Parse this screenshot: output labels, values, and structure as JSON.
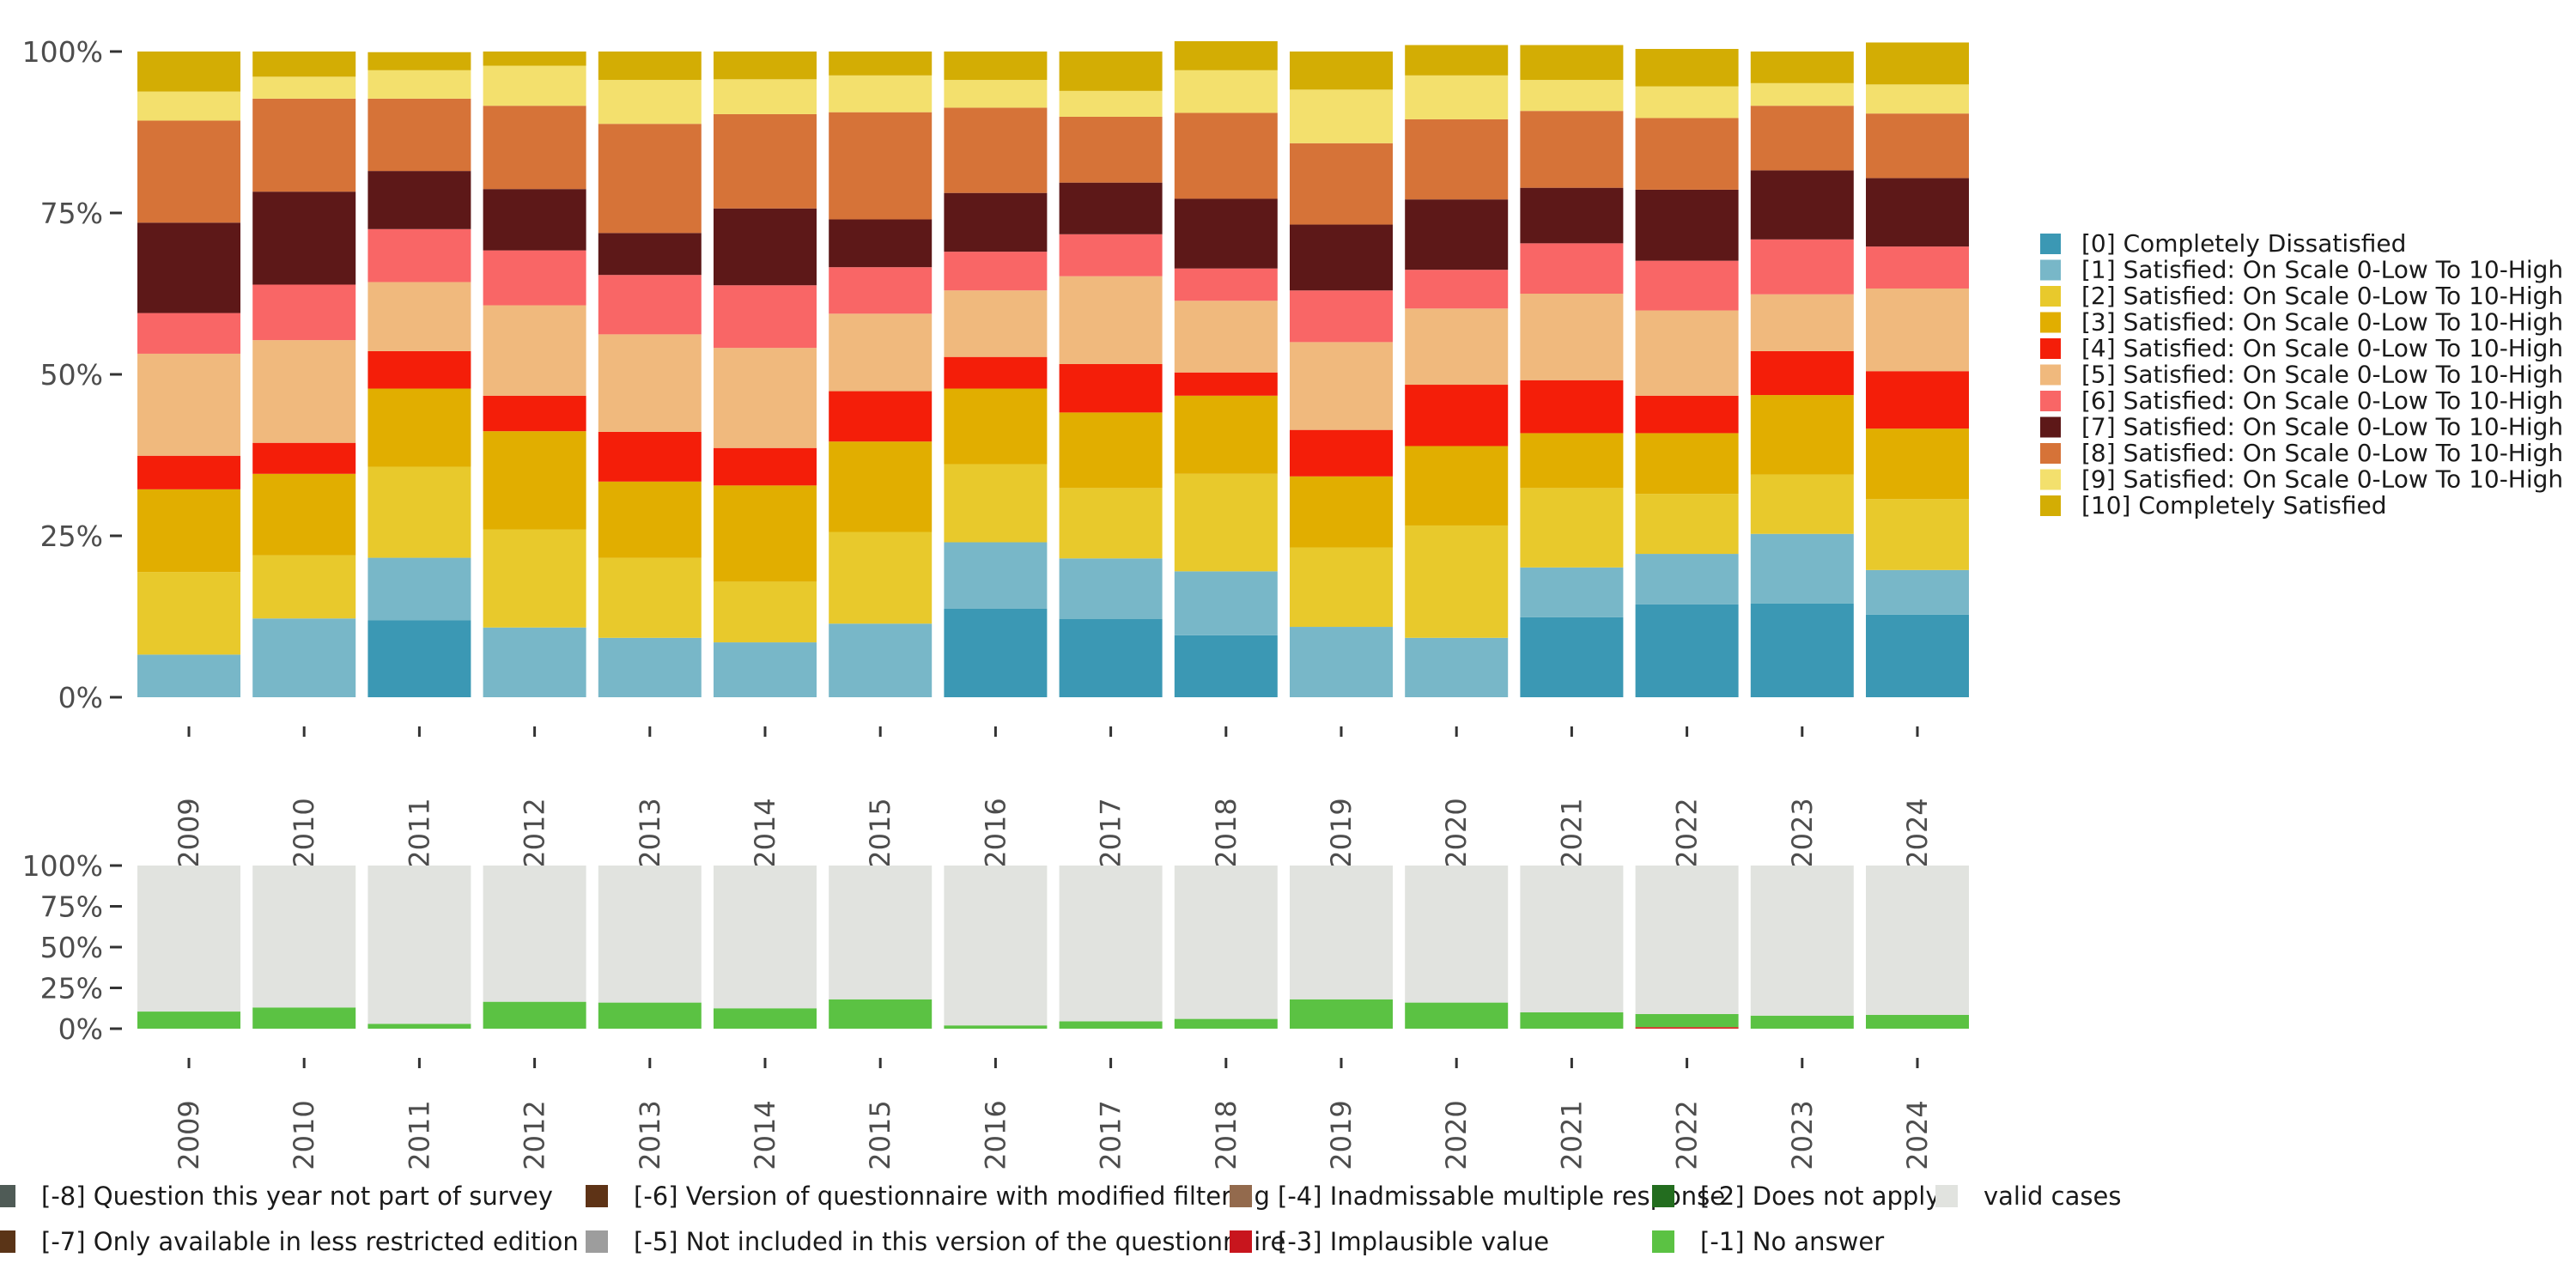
{
  "chart_data": [
    {
      "type": "stacked-bar",
      "years": [
        "2009",
        "2010",
        "2011",
        "2012",
        "2013",
        "2014",
        "2015",
        "2016",
        "2017",
        "2018",
        "2019",
        "2020",
        "2021",
        "2022",
        "2023",
        "2024"
      ],
      "y_ticks": [
        "100%",
        "75%",
        "50%",
        "25%",
        "0%"
      ],
      "ylim": [
        0,
        100
      ],
      "series": [
        {
          "name": "[0] Completely Dissatisfied",
          "color": "#3b98b4",
          "values": [
            0,
            0,
            11.9,
            0,
            0,
            0,
            0,
            13.7,
            12.1,
            9.6,
            0,
            0,
            12.4,
            14.4,
            14.5,
            12.8
          ]
        },
        {
          "name": "[1] Satisfied: On Scale 0-Low To 10-High",
          "color": "#78b7c8",
          "values": [
            6.6,
            12.2,
            9.7,
            10.8,
            9.2,
            8.5,
            11.4,
            10.3,
            9.4,
            9.9,
            10.9,
            9.2,
            7.7,
            7.8,
            10.8,
            6.9
          ]
        },
        {
          "name": "[2] Satisfied: On Scale 0-Low To 10-High",
          "color": "#e8c92c",
          "values": [
            12.8,
            9.8,
            14.1,
            15.2,
            12.4,
            9.4,
            14.2,
            12.1,
            10.9,
            15.1,
            12.3,
            17.4,
            12.3,
            9.3,
            9.2,
            11.0
          ]
        },
        {
          "name": "[3] Satisfied: On Scale 0-Low To 10-High",
          "color": "#e1ae00",
          "values": [
            12.8,
            12.6,
            12.1,
            15.2,
            11.8,
            14.9,
            14.0,
            11.7,
            11.7,
            12.1,
            11.0,
            12.3,
            8.5,
            9.4,
            12.3,
            10.9
          ]
        },
        {
          "name": "[4] Satisfied: On Scale 0-Low To 10-High",
          "color": "#f41e09",
          "values": [
            5.2,
            4.8,
            5.8,
            5.5,
            7.7,
            5.8,
            7.8,
            4.9,
            7.5,
            3.6,
            7.2,
            9.5,
            8.2,
            5.8,
            6.8,
            8.9
          ]
        },
        {
          "name": "[5] Satisfied: On Scale 0-Low To 10-High",
          "color": "#f0b97d",
          "values": [
            15.8,
            15.9,
            10.7,
            14.0,
            15.1,
            15.5,
            12.0,
            10.3,
            13.6,
            11.1,
            13.6,
            11.8,
            13.4,
            13.2,
            8.8,
            12.8
          ]
        },
        {
          "name": "[6] Satisfied: On Scale 0-Low To 10-High",
          "color": "#f96666",
          "values": [
            6.3,
            8.6,
            8.2,
            8.5,
            9.2,
            9.7,
            7.2,
            6.0,
            6.5,
            5.0,
            8.0,
            6.0,
            7.8,
            7.7,
            8.5,
            6.5
          ]
        },
        {
          "name": "[7] Satisfied: On Scale 0-Low To 10-High",
          "color": "#5d1818",
          "values": [
            14.0,
            14.4,
            9.0,
            9.5,
            6.5,
            11.9,
            7.4,
            9.1,
            8.0,
            10.8,
            10.2,
            10.9,
            8.6,
            11.0,
            10.7,
            10.6
          ]
        },
        {
          "name": "[8] Satisfied: On Scale 0-Low To 10-High",
          "color": "#d67338",
          "values": [
            15.8,
            14.4,
            11.2,
            12.9,
            16.9,
            14.6,
            16.6,
            13.2,
            10.2,
            13.3,
            12.6,
            12.4,
            11.9,
            11.1,
            10.0,
            10.0
          ]
        },
        {
          "name": "[9] Satisfied: On Scale 0-Low To 10-High",
          "color": "#f3e06d",
          "values": [
            4.5,
            3.4,
            4.4,
            6.2,
            6.8,
            5.4,
            5.7,
            4.3,
            4.0,
            6.6,
            8.3,
            6.8,
            4.8,
            4.9,
            3.5,
            4.5
          ]
        },
        {
          "name": "[10] Completely Satisfied",
          "color": "#d3ad04",
          "values": [
            6.2,
            3.9,
            2.8,
            2.2,
            4.4,
            4.3,
            3.7,
            4.4,
            6.1,
            4.5,
            5.9,
            4.7,
            5.4,
            5.8,
            4.9,
            6.5
          ]
        }
      ]
    },
    {
      "type": "stacked-bar",
      "years": [
        "2009",
        "2010",
        "2011",
        "2012",
        "2013",
        "2014",
        "2015",
        "2016",
        "2017",
        "2018",
        "2019",
        "2020",
        "2021",
        "2022",
        "2023",
        "2024"
      ],
      "y_ticks": [
        "100%",
        "75%",
        "50%",
        "25%",
        "0%"
      ],
      "ylim": [
        0,
        100
      ],
      "series": [
        {
          "name": "[-2] Does not apply",
          "color": "#d42f26",
          "values": [
            0,
            0,
            0,
            0,
            0,
            0,
            0,
            0,
            0,
            0,
            0,
            0,
            0,
            1.0,
            0,
            0
          ]
        },
        {
          "name": "[-1] No answer",
          "color": "#5bc243",
          "values": [
            10.5,
            13.0,
            3.0,
            16.5,
            16.0,
            12.5,
            18.0,
            2.0,
            4.5,
            6.0,
            18.0,
            16.0,
            10.0,
            8.0,
            8.0,
            8.5
          ]
        },
        {
          "name": "valid cases",
          "color": "#e1e3df",
          "values": [
            89.5,
            87.0,
            97.0,
            83.5,
            84.0,
            87.5,
            82.0,
            98.0,
            95.5,
            94.0,
            82.0,
            84.0,
            90.0,
            91.0,
            92.0,
            91.5
          ]
        }
      ]
    }
  ],
  "bottom_legend": [
    {
      "label": "[-8] Question this year not part of survey",
      "color": "#4f5b56"
    },
    {
      "label": "[-7] Only available in less restricted edition",
      "color": "#5a3417"
    },
    {
      "label": "[-6] Version of questionnaire with modified filtering",
      "color": "#5e3316"
    },
    {
      "label": "[-5] Not included in this version of the questionnaire",
      "color": "#9d9d9d"
    },
    {
      "label": "[-4] Inadmissable multiple response",
      "color": "#936a4d"
    },
    {
      "label": "[-3] Implausible value",
      "color": "#c8151d"
    },
    {
      "label": "[-2] Does not apply",
      "color": "#236d1f"
    },
    {
      "label": "[-1] No answer",
      "color": "#5bc243"
    },
    {
      "label": "valid cases",
      "color": "#e1e3df"
    }
  ]
}
